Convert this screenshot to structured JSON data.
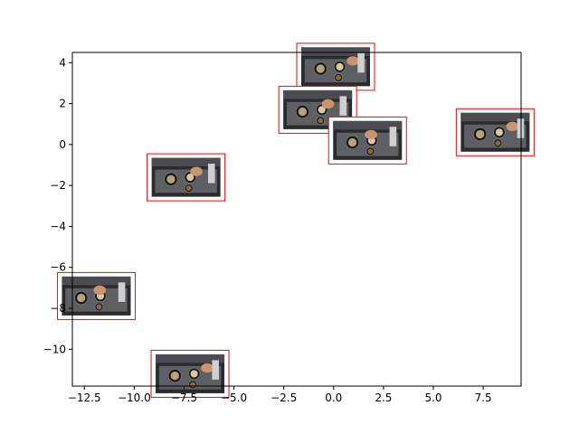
{
  "chart_data": {
    "type": "scatter",
    "title": "",
    "xlabel": "",
    "ylabel": "",
    "xlim": [
      -13.1,
      9.4
    ],
    "ylim": [
      -11.8,
      4.5
    ],
    "grid": false,
    "x_ticks": [
      -12.5,
      -10.0,
      -7.5,
      -5.0,
      -2.5,
      0.0,
      2.5,
      5.0,
      7.5
    ],
    "x_tick_labels": [
      "−12.5",
      "−10.0",
      "−7.5",
      "−5.0",
      "−2.5",
      "0.0",
      "2.5",
      "5.0",
      "7.5"
    ],
    "y_ticks": [
      4,
      2,
      0,
      -2,
      -4,
      -6,
      -8,
      -10
    ],
    "y_tick_labels": [
      "4",
      "2",
      "0",
      "−2",
      "−4",
      "−6",
      "−8",
      "−10"
    ],
    "marker": "image-thumbnail with red frame",
    "frame_color": "#ff0000",
    "points": [
      {
        "x": 0.1,
        "y": 3.8,
        "thumb": "kitchen-stove-pot"
      },
      {
        "x": -0.8,
        "y": 1.7,
        "thumb": "kitchen-sink-hand"
      },
      {
        "x": 1.7,
        "y": 0.2,
        "thumb": "kitchen-counter"
      },
      {
        "x": 8.1,
        "y": 0.6,
        "thumb": "kitchen-stove-hand"
      },
      {
        "x": -7.4,
        "y": -1.6,
        "thumb": "kitchen-pans"
      },
      {
        "x": -11.9,
        "y": -7.4,
        "thumb": "kitchen-stove-pans"
      },
      {
        "x": -7.2,
        "y": -11.2,
        "thumb": "kitchen-sink-wash"
      }
    ]
  }
}
